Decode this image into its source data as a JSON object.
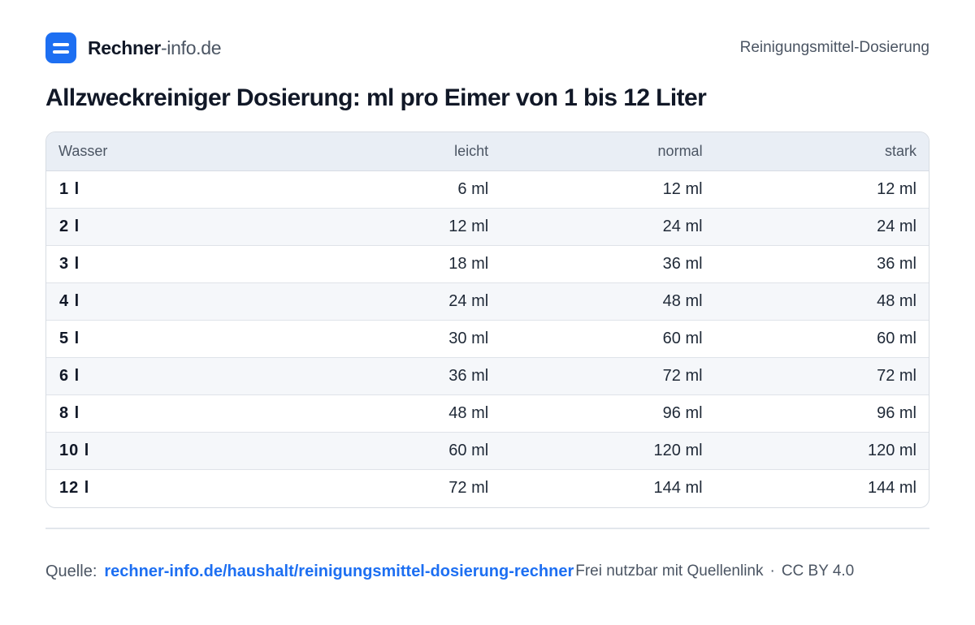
{
  "header": {
    "brand_strong": "Rechner",
    "brand_rest": "-info.de",
    "logo_icon": "calculator-equals-icon",
    "section": "Reinigungsmittel-Dosierung"
  },
  "title": "Allzweckreiniger Dosierung: ml pro Eimer von 1 bis 12 Liter",
  "table": {
    "headers": [
      "Wasser",
      "leicht",
      "normal",
      "stark"
    ],
    "rows": [
      [
        "1 l",
        "6 ml",
        "12 ml",
        "12 ml"
      ],
      [
        "2 l",
        "12 ml",
        "24 ml",
        "24 ml"
      ],
      [
        "3 l",
        "18 ml",
        "36 ml",
        "36 ml"
      ],
      [
        "4 l",
        "24 ml",
        "48 ml",
        "48 ml"
      ],
      [
        "5 l",
        "30 ml",
        "60 ml",
        "60 ml"
      ],
      [
        "6 l",
        "36 ml",
        "72 ml",
        "72 ml"
      ],
      [
        "8 l",
        "48 ml",
        "96 ml",
        "96 ml"
      ],
      [
        "10 l",
        "60 ml",
        "120 ml",
        "120 ml"
      ],
      [
        "12 l",
        "72 ml",
        "144 ml",
        "144 ml"
      ]
    ]
  },
  "footer": {
    "source_label": "Quelle:",
    "source_link": "rechner-info.de/haushalt/reinigungsmittel-dosierung-rechner",
    "license_text": "Frei nutzbar mit Quellenlink",
    "separator": "·",
    "license_name": "CC BY 4.0"
  },
  "colors": {
    "accent": "#1d6ff2",
    "header_row": "#e9eef5",
    "stripe": "#f5f7fa",
    "text": "#111827"
  }
}
